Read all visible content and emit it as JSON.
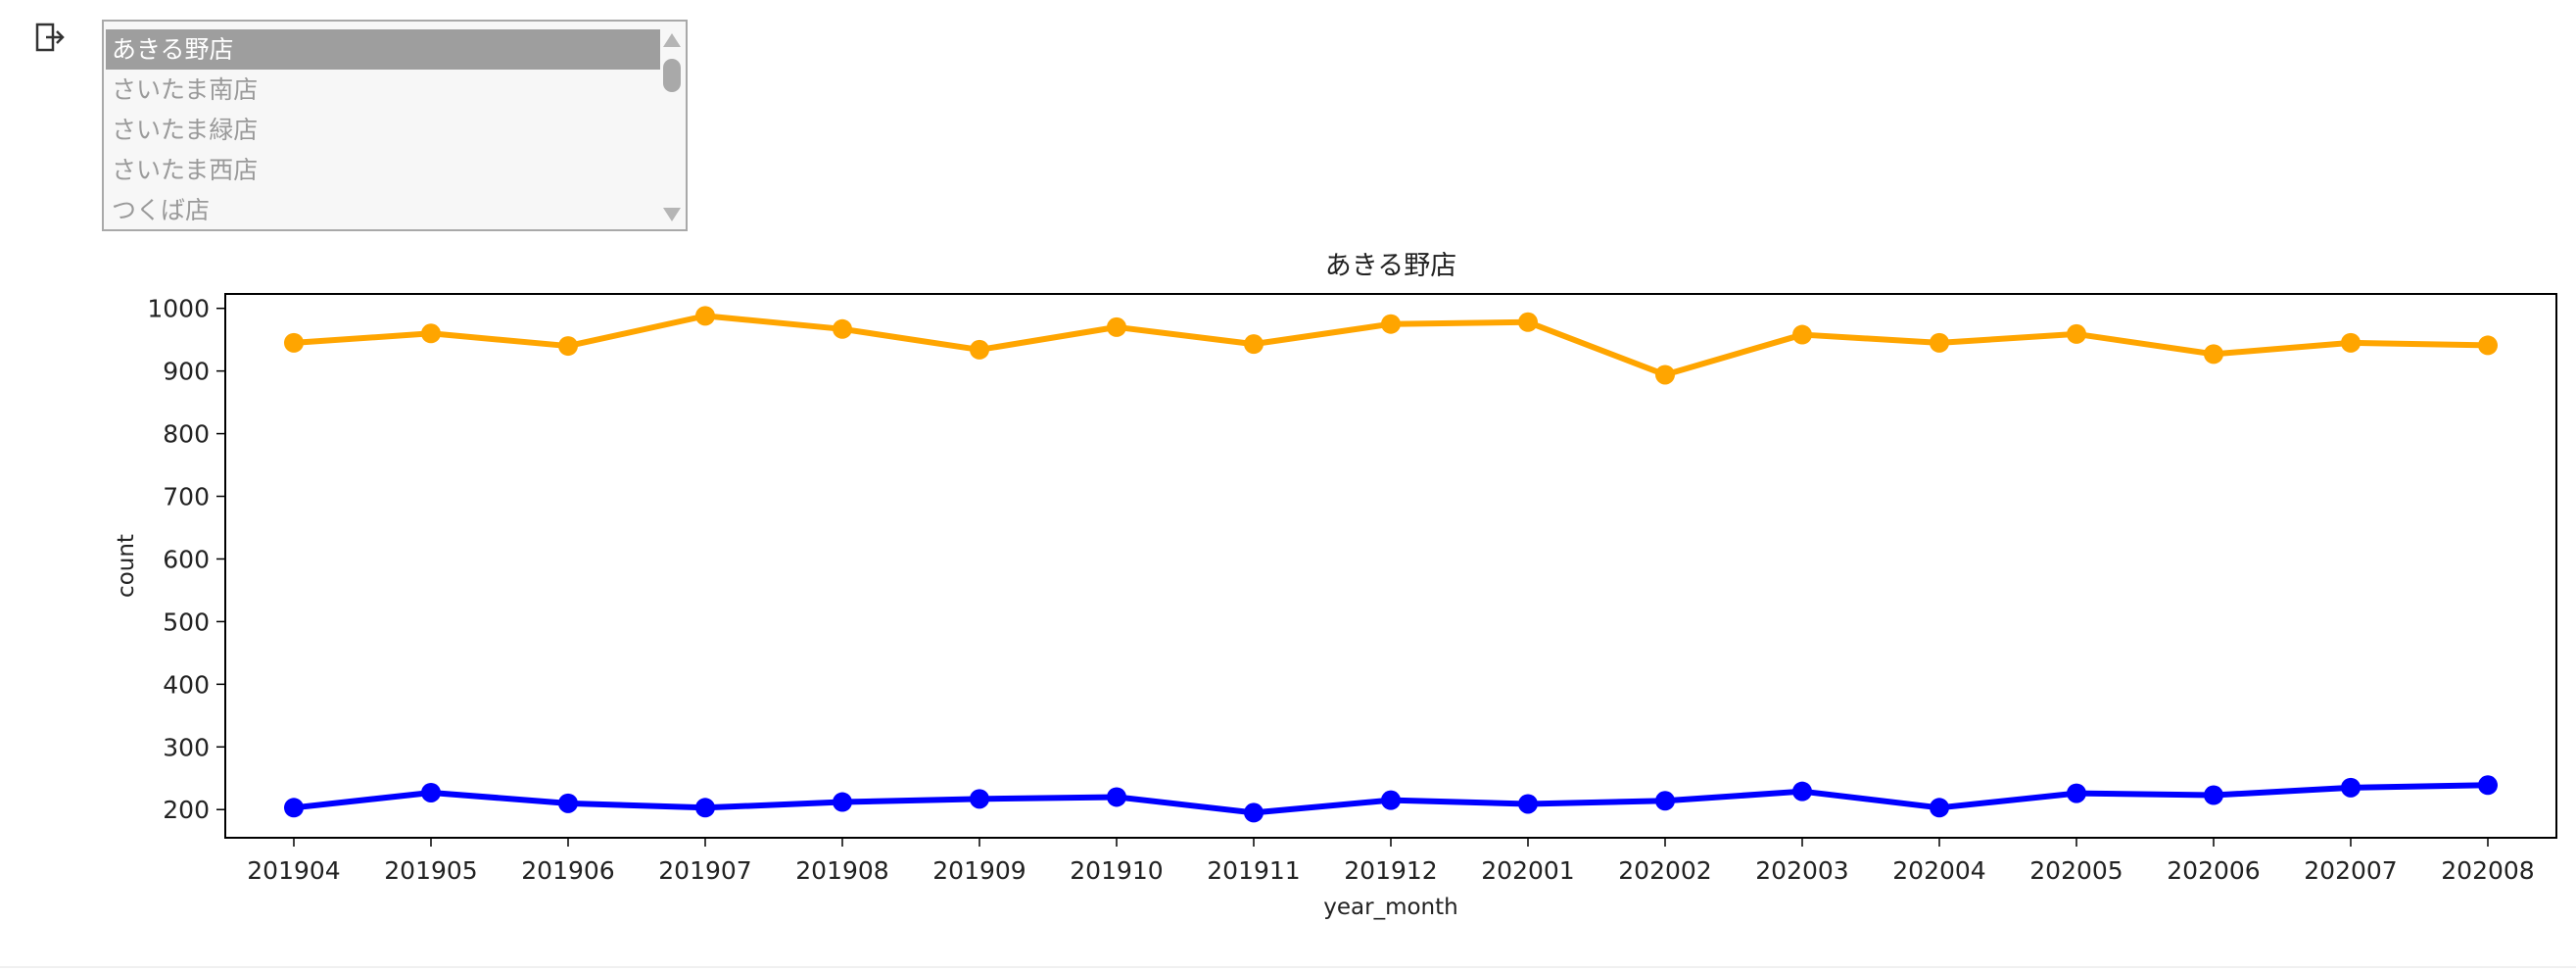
{
  "widget": {
    "options": [
      "あきる野店",
      "さいたま南店",
      "さいたま緑店",
      "さいたま西店",
      "つくば店"
    ],
    "selected_index": 0
  },
  "icons": {
    "output": "output-arrow-icon"
  },
  "colors": {
    "series_orange": "#ffa500",
    "series_blue": "#0000ff",
    "axes": "#000000"
  },
  "chart_data": {
    "type": "line",
    "title": "あきる野店",
    "xlabel": "year_month",
    "ylabel": "count",
    "categories": [
      "201904",
      "201905",
      "201906",
      "201907",
      "201908",
      "201909",
      "201910",
      "201911",
      "201912",
      "202001",
      "202002",
      "202003",
      "202004",
      "202005",
      "202006",
      "202007",
      "202008"
    ],
    "yticks": [
      200,
      300,
      400,
      500,
      600,
      700,
      800,
      900,
      1000
    ],
    "ylim": [
      155,
      1023
    ],
    "grid": false,
    "series": [
      {
        "color": "#ffa500",
        "values": [
          945,
          960,
          940,
          988,
          967,
          934,
          970,
          943,
          975,
          978,
          894,
          958,
          945,
          959,
          927,
          945,
          941
        ]
      },
      {
        "color": "#0000ff",
        "values": [
          203,
          227,
          210,
          203,
          212,
          217,
          220,
          195,
          215,
          209,
          214,
          229,
          203,
          226,
          223,
          235,
          239
        ]
      }
    ]
  }
}
